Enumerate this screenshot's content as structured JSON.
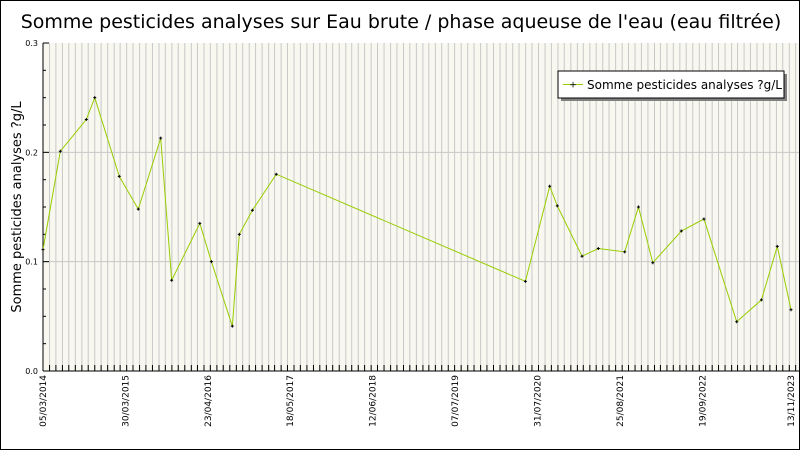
{
  "chart_data": {
    "type": "line",
    "title": "Somme pesticides analyses sur Eau brute / phase aqueuse de l'eau (eau filtrée)",
    "xlabel": "",
    "ylabel": "Somme pesticides analyses ?g/L",
    "ylim": [
      0,
      0.3
    ],
    "xlim": [
      "2014-03-05",
      "2023-11-13"
    ],
    "y_ticks": [
      "0.0",
      "0.1",
      "0.2",
      "0.3"
    ],
    "x_ticks": [
      "05/03/2014",
      "30/03/2015",
      "23/04/2016",
      "18/05/2017",
      "12/06/2018",
      "07/07/2019",
      "31/07/2020",
      "25/08/2021",
      "19/09/2022",
      "13/11/2023"
    ],
    "grid": true,
    "legend_position": "top-right",
    "colors": {
      "line": "#99cc00",
      "marker": "#000000",
      "plot_bg": "#f8f8f0",
      "grid": "#c8c8c8"
    },
    "series": [
      {
        "name": "Somme pesticides analyses ?g/L",
        "points": [
          [
            "2014-03-05",
            0.111
          ],
          [
            "2014-05-26",
            0.201
          ],
          [
            "2014-09-26",
            0.23
          ],
          [
            "2014-11-05",
            0.25
          ],
          [
            "2015-03-01",
            0.178
          ],
          [
            "2015-05-30",
            0.148
          ],
          [
            "2015-09-13",
            0.213
          ],
          [
            "2015-11-04",
            0.083
          ],
          [
            "2016-03-16",
            0.135
          ],
          [
            "2016-05-10",
            0.1
          ],
          [
            "2016-08-17",
            0.041
          ],
          [
            "2016-09-19",
            0.125
          ],
          [
            "2016-11-20",
            0.147
          ],
          [
            "2017-03-13",
            0.18
          ],
          [
            "2020-06-04",
            0.082
          ],
          [
            "2020-09-27",
            0.169
          ],
          [
            "2020-11-02",
            0.151
          ],
          [
            "2021-02-27",
            0.105
          ],
          [
            "2021-05-15",
            0.112
          ],
          [
            "2021-09-17",
            0.109
          ],
          [
            "2021-11-21",
            0.15
          ],
          [
            "2022-01-28",
            0.099
          ],
          [
            "2022-06-12",
            0.128
          ],
          [
            "2022-09-27",
            0.139
          ],
          [
            "2023-03-01",
            0.045
          ],
          [
            "2023-06-26",
            0.065
          ],
          [
            "2023-09-09",
            0.114
          ],
          [
            "2023-11-13",
            0.056
          ]
        ]
      }
    ]
  }
}
